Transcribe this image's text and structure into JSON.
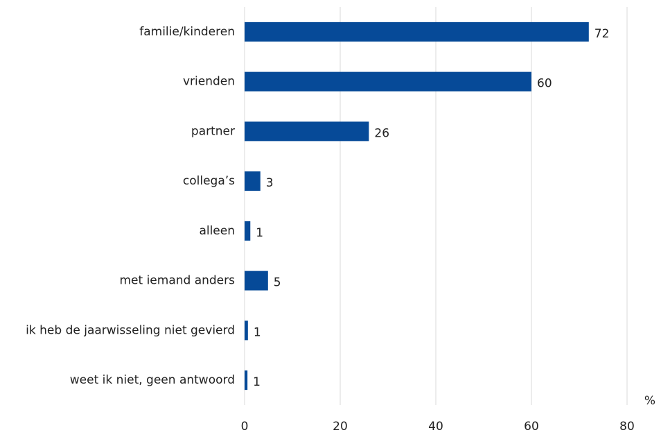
{
  "chart_data": {
    "type": "bar",
    "orientation": "horizontal",
    "categories": [
      "familie/kinderen",
      "vrienden",
      "partner",
      "collega’s",
      "alleen",
      "met iemand anders",
      "ik heb de jaarwisseling niet gevierd",
      "weet ik niet, geen antwoord"
    ],
    "values": [
      72,
      60,
      26,
      3.3,
      1.2,
      4.9,
      0.7,
      0.6
    ],
    "value_labels": [
      "72",
      "60",
      "26",
      "3",
      "1",
      "5",
      "1",
      "1"
    ],
    "color": "#064a98",
    "xlim": [
      0,
      80
    ],
    "xticks": [
      0,
      20,
      40,
      60,
      80
    ],
    "grid": true,
    "unit_label": "%"
  }
}
